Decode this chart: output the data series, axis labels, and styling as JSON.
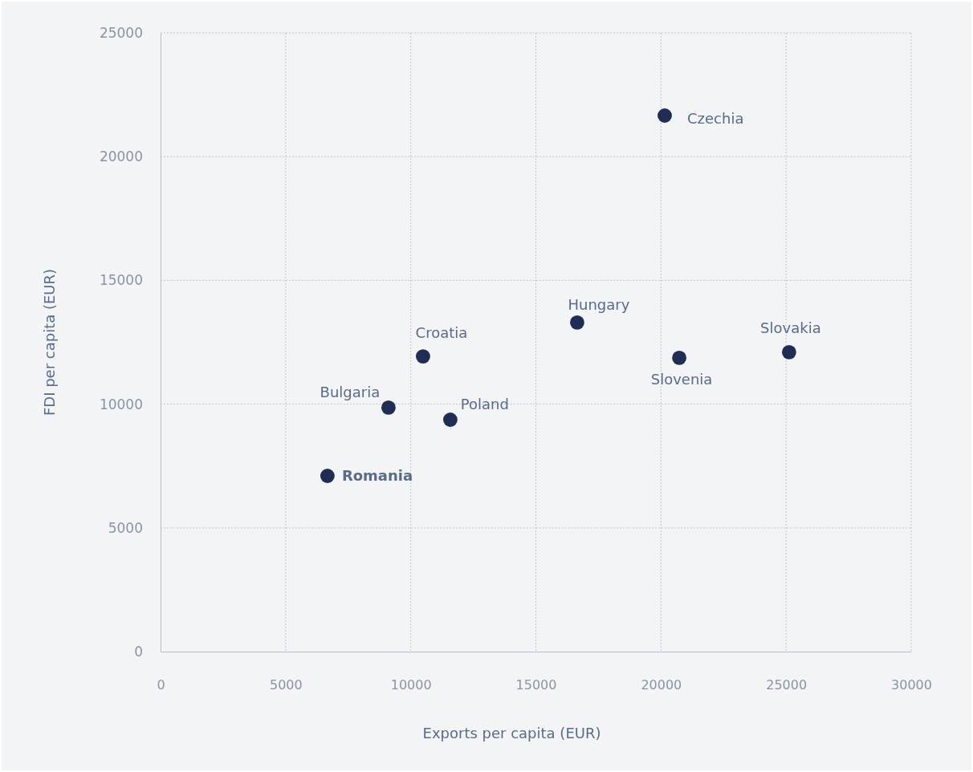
{
  "chart_data": {
    "type": "scatter",
    "xlabel": "Exports per capita (EUR)",
    "ylabel": "FDI per capita (EUR)",
    "xlim": [
      0,
      30000
    ],
    "xticks": [
      0,
      5000,
      10000,
      15000,
      20000,
      25000,
      30000
    ],
    "ylim": [
      0,
      25000
    ],
    "yticks": [
      0,
      5000,
      10000,
      15000,
      20000,
      25000
    ],
    "grid": true,
    "marker": "circle",
    "series": [
      {
        "color": "#1f2d54",
        "x": [
          20150,
          20730,
          25120,
          16650,
          10490,
          11580,
          9110,
          6670
        ],
        "values": [
          21660,
          11870,
          12100,
          13300,
          11930,
          9370,
          9860,
          7100
        ]
      }
    ],
    "annotations": [
      {
        "text": "Czechia",
        "x": 20150,
        "y": 21660
      },
      {
        "text": "Slovenia",
        "x": 20730,
        "y": 11870
      },
      {
        "text": "Slovakia",
        "x": 25120,
        "y": 12100
      },
      {
        "text": "Hungary",
        "x": 16650,
        "y": 13300
      },
      {
        "text": "Croatia",
        "x": 10490,
        "y": 11930
      },
      {
        "text": "Poland",
        "x": 11580,
        "y": 9370
      },
      {
        "text": "Bulgaria",
        "x": 9110,
        "y": 9860
      },
      {
        "text": "Romania",
        "x": 6670,
        "y": 7100
      }
    ]
  }
}
